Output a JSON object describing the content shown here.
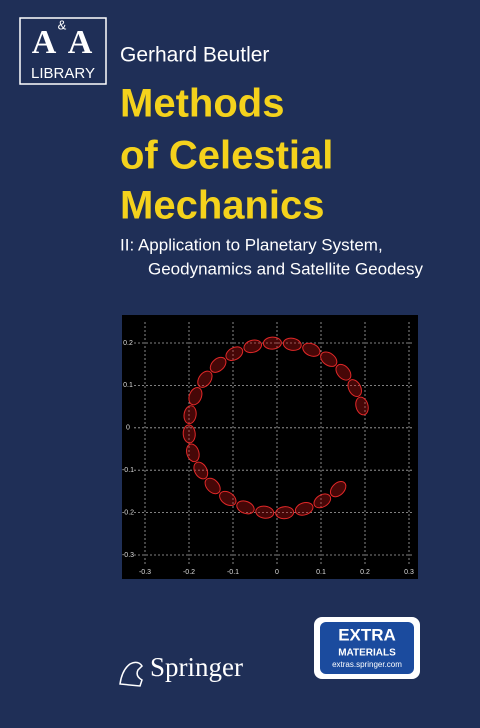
{
  "logo": {
    "letter_left": "A",
    "ampersand": "&",
    "letter_right": "A",
    "series": "LIBRARY"
  },
  "author": "Gerhard Beutler",
  "title": [
    "Methods",
    "of Celestial",
    "Mechanics"
  ],
  "subtitle": [
    "II: Application to Planetary System,",
    "Geodynamics and Satellite Geodesy"
  ],
  "figure": {
    "yticks": [
      "0.2",
      "0.1",
      "0",
      "-0.1",
      "-0.2",
      "-0.3"
    ],
    "xticks": [
      "-0.3",
      "-0.2",
      "-0.1",
      "0",
      "0.1",
      "0.2",
      "0.3"
    ]
  },
  "badge": {
    "heading": "EXTRA",
    "subheading": "MATERIALS",
    "url": "extras.springer.com"
  },
  "publisher": "Springer"
}
